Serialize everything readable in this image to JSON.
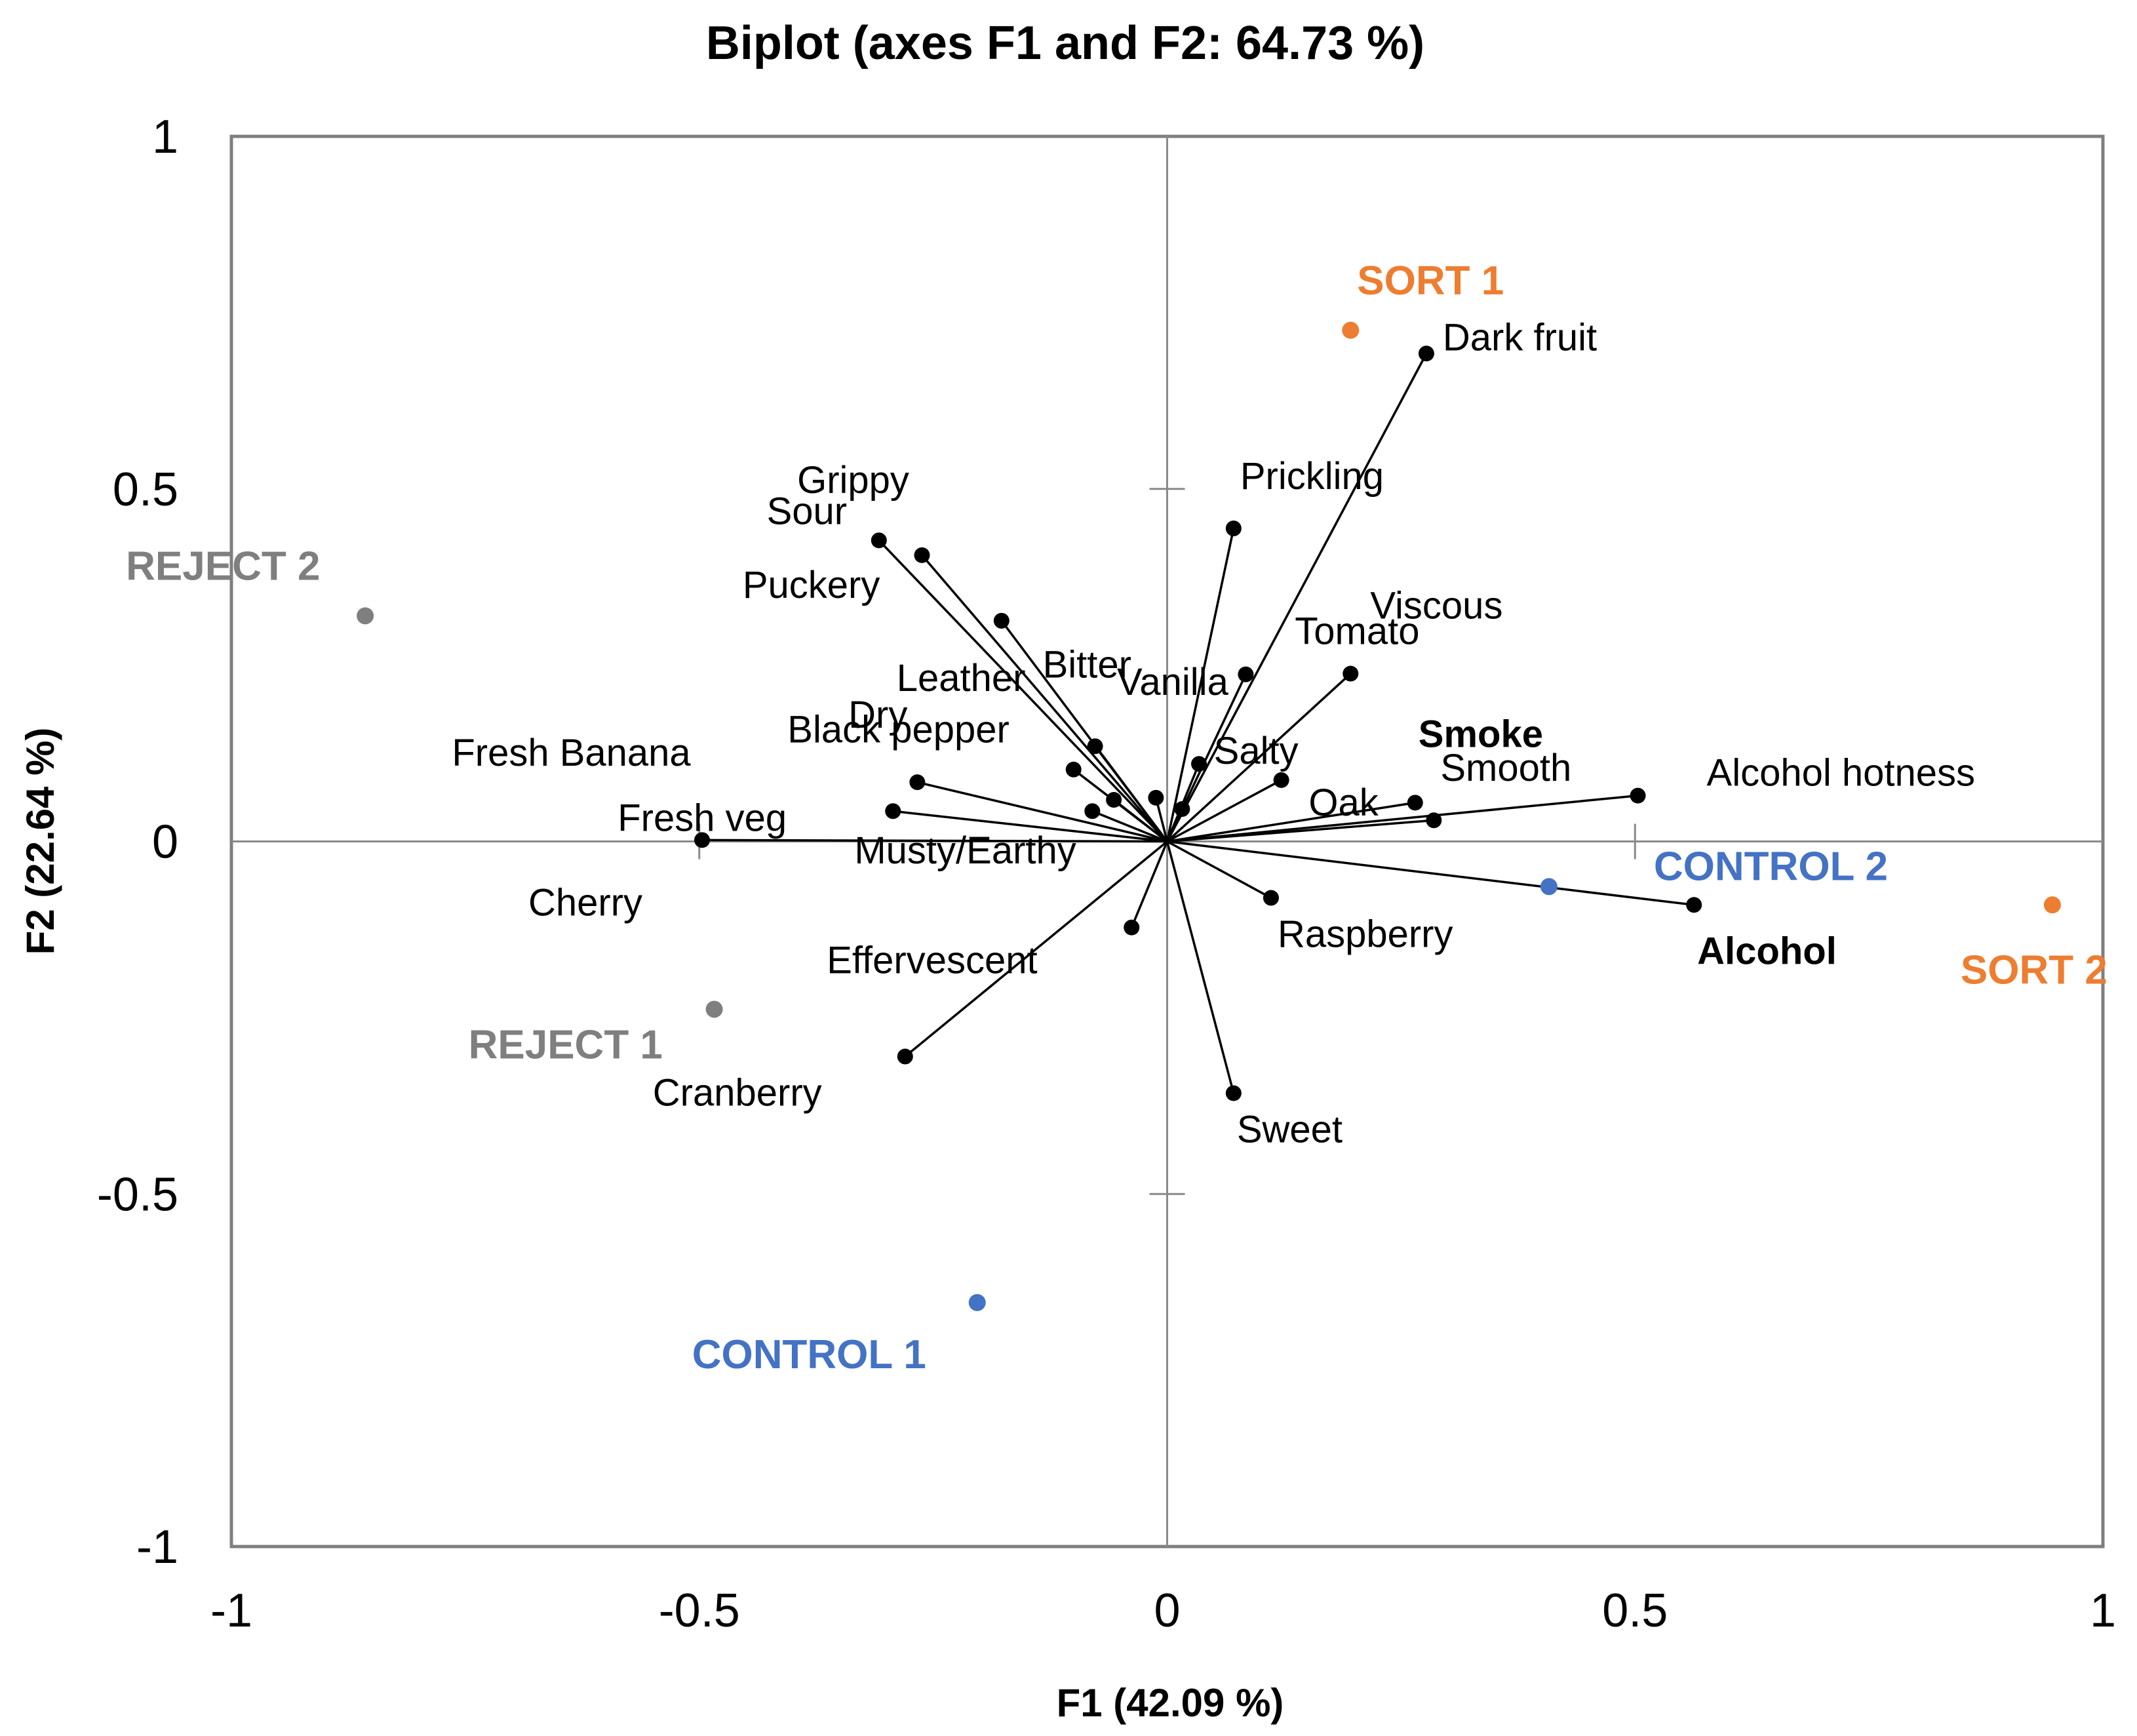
{
  "chart_data": {
    "type": "scatter",
    "title": "Biplot (axes F1 and F2: 64.73 %)",
    "xlabel": "F1 (42.09 %)",
    "ylabel": "F2 (22.64 %)",
    "xlim": [
      -1,
      1
    ],
    "ylim": [
      -1,
      1
    ],
    "x_ticks": [
      {
        "value": -1,
        "label": "-1"
      },
      {
        "value": -0.5,
        "label": "-0.5"
      },
      {
        "value": 0,
        "label": "0"
      },
      {
        "value": 0.5,
        "label": "0.5"
      },
      {
        "value": 1,
        "label": "1"
      }
    ],
    "y_ticks": [
      {
        "value": -1,
        "label": "-1"
      },
      {
        "value": -0.5,
        "label": "-0.5"
      },
      {
        "value": 0,
        "label": "0"
      },
      {
        "value": 0.5,
        "label": "0.5"
      },
      {
        "value": 1,
        "label": "1"
      }
    ],
    "variables": [
      {
        "name": "Dark fruit",
        "x": 0.277,
        "y": 0.692,
        "bold": false
      },
      {
        "name": "Prickling",
        "x": 0.071,
        "y": 0.444,
        "bold": false
      },
      {
        "name": "Viscous",
        "x": 0.084,
        "y": 0.237,
        "bold": false
      },
      {
        "name": "Tomato",
        "x": 0.196,
        "y": 0.238,
        "bold": false
      },
      {
        "name": "Grippy",
        "x": -0.262,
        "y": 0.406,
        "bold": false
      },
      {
        "name": "Sour",
        "x": -0.308,
        "y": 0.427,
        "bold": false
      },
      {
        "name": "Puckery",
        "x": -0.177,
        "y": 0.313,
        "bold": false
      },
      {
        "name": "Bitter",
        "x": -0.077,
        "y": 0.135,
        "bold": false
      },
      {
        "name": "Vanilla",
        "x": 0.034,
        "y": 0.11,
        "bold": false
      },
      {
        "name": "Salty",
        "x": 0.122,
        "y": 0.087,
        "bold": false
      },
      {
        "name": "Leather",
        "x": -0.1,
        "y": 0.102,
        "bold": false
      },
      {
        "name": "Dry",
        "x": -0.057,
        "y": 0.059,
        "bold": false
      },
      {
        "name": "Black pepper",
        "x": -0.08,
        "y": 0.043,
        "bold": false
      },
      {
        "name": "Musty/Earthy",
        "x": -0.012,
        "y": 0.062,
        "bold": false
      },
      {
        "name": "Oak",
        "x": 0.016,
        "y": 0.046,
        "bold": false
      },
      {
        "name": "Smoke",
        "x": 0.265,
        "y": 0.055,
        "bold": true
      },
      {
        "name": "Smooth",
        "x": 0.285,
        "y": 0.03,
        "bold": false
      },
      {
        "name": "Alcohol hotness",
        "x": 0.503,
        "y": 0.065,
        "bold": false
      },
      {
        "name": "Fresh Banana",
        "x": -0.267,
        "y": 0.084,
        "bold": false
      },
      {
        "name": "Fresh veg",
        "x": -0.293,
        "y": 0.043,
        "bold": false
      },
      {
        "name": "Cherry",
        "x": -0.497,
        "y": 0.002,
        "bold": false
      },
      {
        "name": "Raspberry",
        "x": 0.111,
        "y": -0.08,
        "bold": false
      },
      {
        "name": "Alcohol",
        "x": 0.563,
        "y": -0.09,
        "bold": true
      },
      {
        "name": "Effervescent",
        "x": -0.038,
        "y": -0.122,
        "bold": false
      },
      {
        "name": "Cranberry",
        "x": -0.28,
        "y": -0.305,
        "bold": false
      },
      {
        "name": "Sweet",
        "x": 0.071,
        "y": -0.357,
        "bold": false
      }
    ],
    "observations": [
      {
        "name": "SORT 1",
        "x": 0.196,
        "y": 0.725,
        "group": "sort"
      },
      {
        "name": "SORT 2",
        "x": 0.946,
        "y": -0.09,
        "group": "sort"
      },
      {
        "name": "REJECT 2",
        "x": -0.857,
        "y": 0.32,
        "group": "reject"
      },
      {
        "name": "REJECT 1",
        "x": -0.484,
        "y": -0.238,
        "group": "reject"
      },
      {
        "name": "CONTROL 2",
        "x": 0.408,
        "y": -0.064,
        "group": "control"
      },
      {
        "name": "CONTROL 1",
        "x": -0.203,
        "y": -0.654,
        "group": "control"
      }
    ],
    "group_colors": {
      "sort": "#ed7d31",
      "reject": "#7f7f7f",
      "control": "#4472c4",
      "variable": "#000000"
    }
  }
}
